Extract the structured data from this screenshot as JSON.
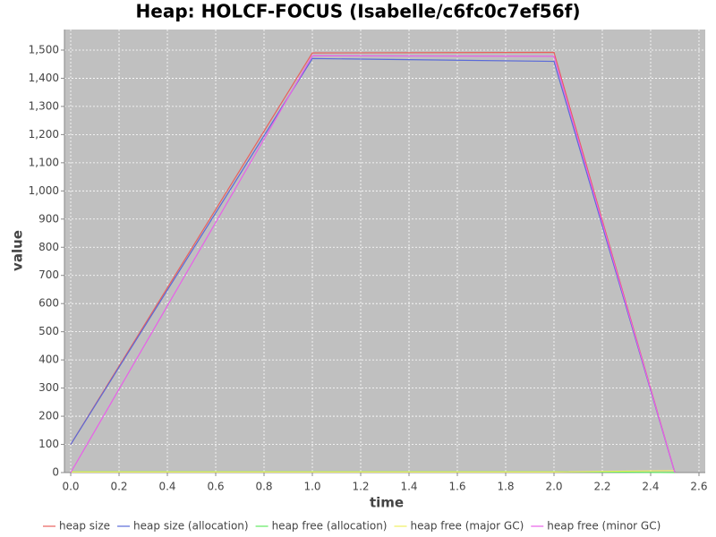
{
  "chart_data": {
    "type": "line",
    "title": "Heap: HOLCF-FOCUS (Isabelle/c6fc0c7ef56f)",
    "x_label": "time",
    "y_label": "value",
    "x": [
      0,
      1,
      2,
      2.5
    ],
    "series": [
      {
        "name": "heap size",
        "color": "#e8605c",
        "values": [
          100,
          1490,
          1492,
          0
        ]
      },
      {
        "name": "heap size (allocation)",
        "color": "#5a6ad8",
        "values": [
          100,
          1470,
          1460,
          0
        ]
      },
      {
        "name": "heap free (allocation)",
        "color": "#60e860",
        "values": [
          3,
          3,
          3,
          0
        ]
      },
      {
        "name": "heap free (major GC)",
        "color": "#f0f060",
        "values": [
          2,
          2,
          2,
          7
        ]
      },
      {
        "name": "heap free (minor GC)",
        "color": "#e860e8",
        "values": [
          0,
          1480,
          1478,
          0
        ]
      }
    ],
    "xlim": [
      -0.026,
      2.626
    ],
    "xticks": [
      {
        "value": 0,
        "label": "0.0"
      },
      {
        "value": 0.2,
        "label": "0.2"
      },
      {
        "value": 0.4,
        "label": "0.4"
      },
      {
        "value": 0.6,
        "label": "0.6"
      },
      {
        "value": 0.8,
        "label": "0.8"
      },
      {
        "value": 1,
        "label": "1.0"
      },
      {
        "value": 1.2,
        "label": "1.2"
      },
      {
        "value": 1.4,
        "label": "1.4"
      },
      {
        "value": 1.6,
        "label": "1.6"
      },
      {
        "value": 1.8,
        "label": "1.8"
      },
      {
        "value": 2,
        "label": "2.0"
      },
      {
        "value": 2.2,
        "label": "2.2"
      },
      {
        "value": 2.4,
        "label": "2.4"
      },
      {
        "value": 2.6,
        "label": "2.6"
      }
    ],
    "ylim": [
      0,
      1573
    ],
    "yticks": [
      0,
      100,
      200,
      300,
      400,
      500,
      600,
      700,
      800,
      900,
      {
        "value": 1000,
        "label": "1,000"
      },
      {
        "value": 1100,
        "label": "1,100"
      },
      {
        "value": 1200,
        "label": "1,200"
      },
      {
        "value": 1300,
        "label": "1,300"
      },
      {
        "value": 1400,
        "label": "1,400"
      },
      {
        "value": 1500,
        "label": "1,500"
      }
    ],
    "grid": true,
    "legend": "bottom",
    "background": "#c0c0c0"
  }
}
